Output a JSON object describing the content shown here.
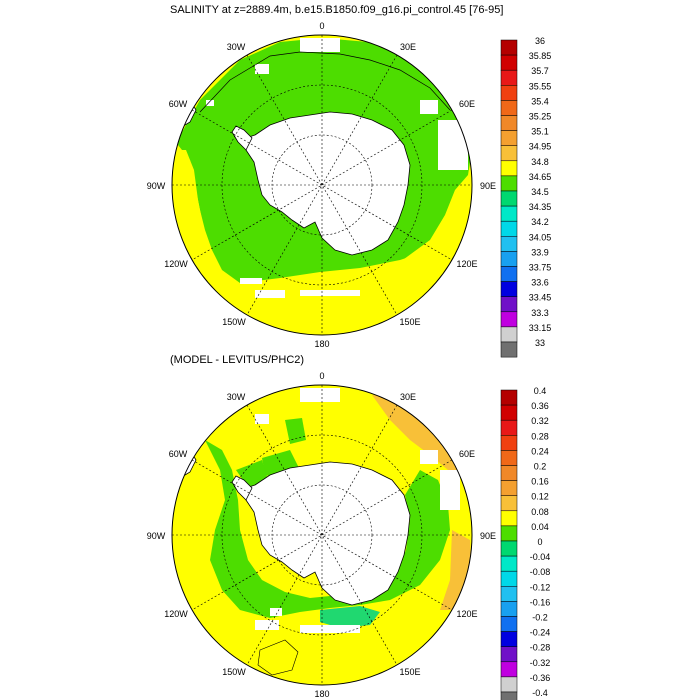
{
  "panels": [
    {
      "title": "SALINITY at z=2889.4m, b.e15.B1850.f09_g16.pi_control.45 [76-95]",
      "colorbar": {
        "labels": [
          "36",
          "35.85",
          "35.7",
          "35.55",
          "35.4",
          "35.25",
          "35.1",
          "34.95",
          "34.8",
          "34.65",
          "34.5",
          "34.35",
          "34.2",
          "34.05",
          "33.9",
          "33.75",
          "33.6",
          "33.45",
          "33.3",
          "33.15",
          "33"
        ],
        "colors": [
          "#b40000",
          "#d00000",
          "#e81818",
          "#f04010",
          "#f06818",
          "#f08828",
          "#f4a030",
          "#f8c038",
          "#ffff00",
          "#4ddd00",
          "#00d870",
          "#00e8c8",
          "#00d8e8",
          "#20c0f0",
          "#18a0f0",
          "#1070f0",
          "#0000e0",
          "#7010c8",
          "#c000e0",
          "#d0d0d0",
          "#707070"
        ]
      }
    },
    {
      "title": "(MODEL - LEVITUS/PHC2)",
      "colorbar": {
        "labels": [
          "0.4",
          "0.36",
          "0.32",
          "0.28",
          "0.24",
          "0.2",
          "0.16",
          "0.12",
          "0.08",
          "0.04",
          "0",
          "-0.04",
          "-0.08",
          "-0.12",
          "-0.16",
          "-0.2",
          "-0.24",
          "-0.28",
          "-0.32",
          "-0.36",
          "-0.4"
        ],
        "colors": [
          "#b40000",
          "#d00000",
          "#e81818",
          "#f04010",
          "#f06818",
          "#f08828",
          "#f4a030",
          "#f8c038",
          "#ffff00",
          "#4ddd00",
          "#00d870",
          "#00e8c8",
          "#00d8e8",
          "#20c0f0",
          "#18a0f0",
          "#1070f0",
          "#0000e0",
          "#7010c8",
          "#c000e0",
          "#d0d0d0",
          "#707070"
        ]
      }
    }
  ],
  "longitude_labels": [
    "0",
    "30E",
    "60E",
    "90E",
    "120E",
    "150E",
    "180",
    "150W",
    "120W",
    "90W",
    "60W",
    "30W"
  ],
  "palette": {
    "yellow": "#ffff00",
    "green": "#4ddd00",
    "light_green": "#20d870",
    "orange": "#f8c038",
    "land_white": "#ffffff",
    "coast": "#000000"
  }
}
